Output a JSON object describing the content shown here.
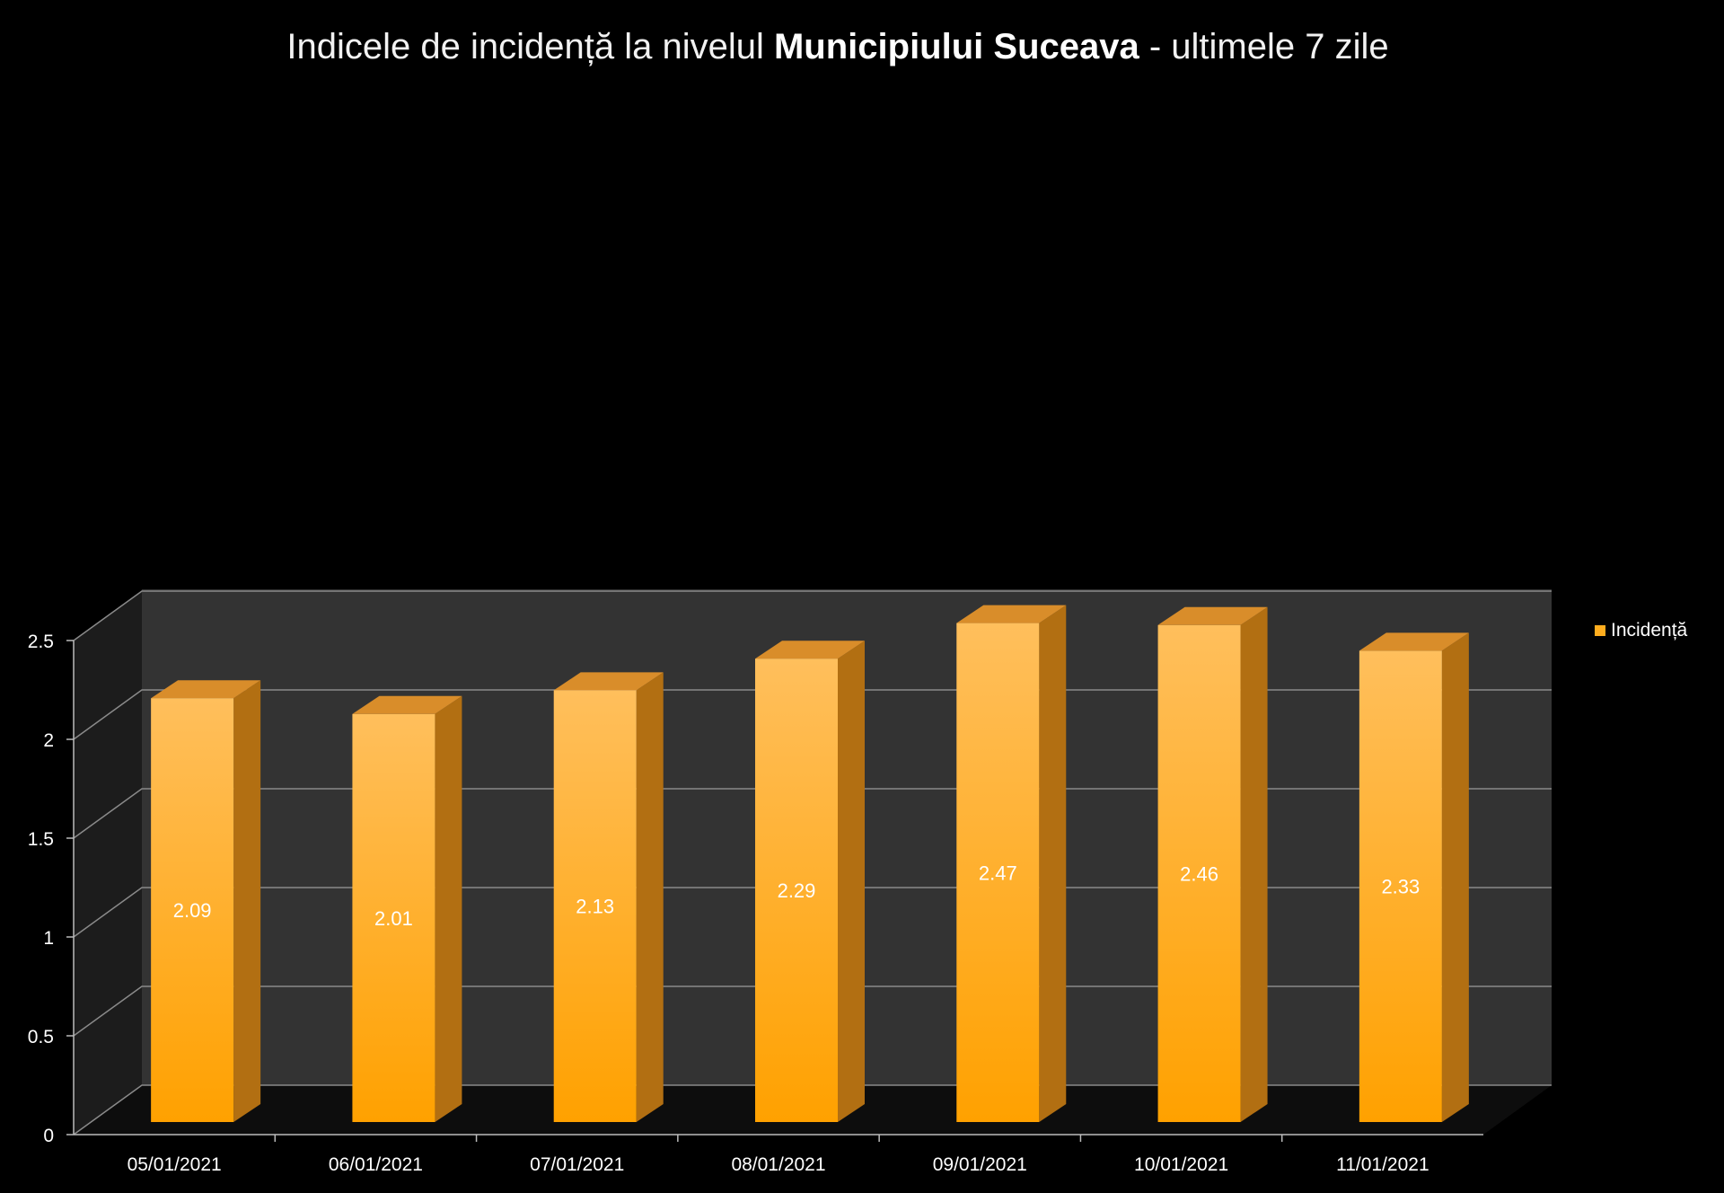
{
  "title": {
    "pre": "Indicele de incidență la nivelul ",
    "bold": "Municipiului Suceava",
    "post": " - ultimele 7 zile"
  },
  "chart_data": {
    "type": "bar",
    "categories": [
      "05/01/2021",
      "06/01/2021",
      "07/01/2021",
      "08/01/2021",
      "09/01/2021",
      "10/01/2021",
      "11/01/2021"
    ],
    "series": [
      {
        "name": "Incidență",
        "values": [
          2.09,
          2.01,
          2.13,
          2.29,
          2.47,
          2.46,
          2.33
        ]
      }
    ],
    "data_labels": [
      "2.09",
      "2.01",
      "2.13",
      "2.29",
      "2.47",
      "2.46",
      "2.33"
    ],
    "yticks": [
      "0",
      "0.5",
      "1",
      "1.5",
      "2",
      "2.5"
    ],
    "ylim": [
      0,
      2.5
    ],
    "grid": true,
    "legend_position": "right",
    "style": "3d-column"
  },
  "colors": {
    "bar_front_top": "#ffbf5c",
    "bar_front_bottom": "#ffa100",
    "bar_side": "#b26f12",
    "bar_top": "#d98d2a",
    "wall": "#333333",
    "side_wall": "#1c1c1c",
    "gridline": "#8a8a8a"
  }
}
